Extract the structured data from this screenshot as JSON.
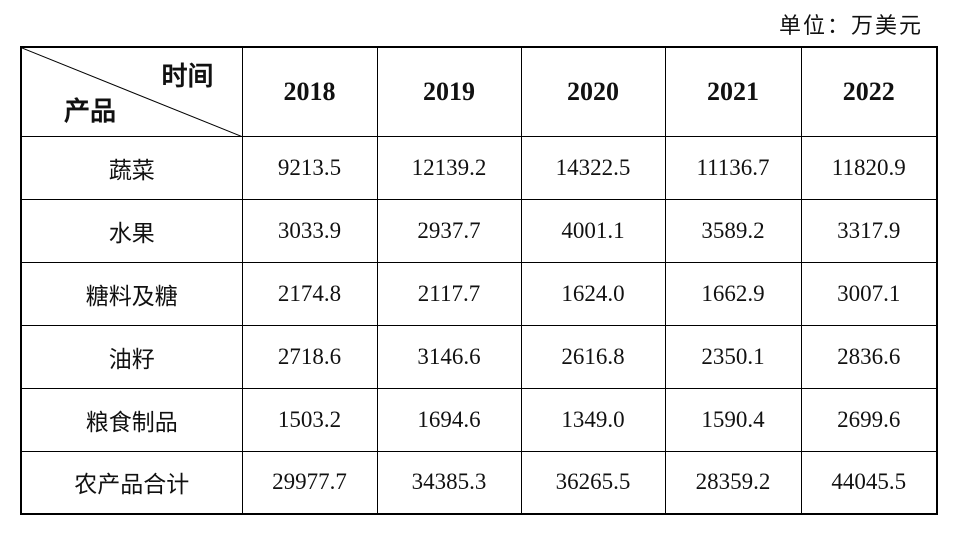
{
  "unit": "单位：万美元",
  "table": {
    "corner": {
      "col_header": "时间",
      "row_header": "产品"
    },
    "columns": [
      "2018",
      "2019",
      "2020",
      "2021",
      "2022"
    ],
    "rows": [
      {
        "label": "蔬菜",
        "values": [
          "9213.5",
          "12139.2",
          "14322.5",
          "11136.7",
          "11820.9"
        ]
      },
      {
        "label": "水果",
        "values": [
          "3033.9",
          "2937.7",
          "4001.1",
          "3589.2",
          "3317.9"
        ]
      },
      {
        "label": "糖料及糖",
        "values": [
          "2174.8",
          "2117.7",
          "1624.0",
          "1662.9",
          "3007.1"
        ]
      },
      {
        "label": "油籽",
        "values": [
          "2718.6",
          "3146.6",
          "2616.8",
          "2350.1",
          "2836.6"
        ]
      },
      {
        "label": "粮食制品",
        "values": [
          "1503.2",
          "1694.6",
          "1349.0",
          "1590.4",
          "2699.6"
        ]
      },
      {
        "label": "农产品合计",
        "values": [
          "29977.7",
          "34385.3",
          "36265.5",
          "28359.2",
          "44045.5"
        ]
      }
    ]
  }
}
